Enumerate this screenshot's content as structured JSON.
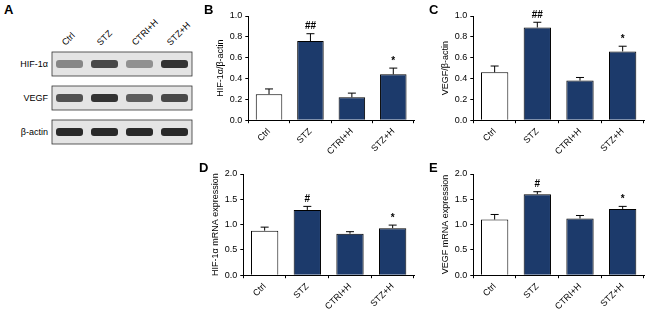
{
  "blot": {
    "panel": "A",
    "lanes": [
      "Ctrl",
      "STZ",
      "CTRI+H",
      "STZ+H"
    ],
    "rows": [
      "HIF-1α",
      "VEGF",
      "β-actin"
    ]
  },
  "chart_data": [
    {
      "type": "bar",
      "panel": "B",
      "y_label": "HIF-1α/β-actin",
      "categories": [
        "Ctrl",
        "STZ",
        "CTRI+H",
        "STZ+H"
      ],
      "values": [
        0.25,
        0.76,
        0.22,
        0.44
      ],
      "errors": [
        0.05,
        0.07,
        0.04,
        0.06
      ],
      "colors": [
        "#ffffff",
        "#1c3a6b",
        "#1c3a6b",
        "#1c3a6b"
      ],
      "annotations": [
        {
          "category": "STZ",
          "text": "##"
        },
        {
          "category": "STZ+H",
          "text": "*"
        }
      ],
      "ylim": [
        0,
        1.0
      ],
      "yticks": [
        {
          "value": 0,
          "label": "0.0"
        },
        {
          "value": 0.2,
          "label": "0.2"
        },
        {
          "value": 0.4,
          "label": "0.4"
        },
        {
          "value": 0.6,
          "label": "0.6"
        },
        {
          "value": 0.8,
          "label": "0.8"
        },
        {
          "value": 1.0,
          "label": "1.0"
        }
      ],
      "grid": false
    },
    {
      "type": "bar",
      "panel": "C",
      "y_label": "VEGF/β-actin",
      "categories": [
        "Ctrl",
        "STZ",
        "CTRI+H",
        "STZ+H"
      ],
      "values": [
        0.46,
        0.89,
        0.38,
        0.66
      ],
      "errors": [
        0.06,
        0.05,
        0.03,
        0.05
      ],
      "colors": [
        "#ffffff",
        "#1c3a6b",
        "#1c3a6b",
        "#1c3a6b"
      ],
      "annotations": [
        {
          "category": "STZ",
          "text": "##"
        },
        {
          "category": "STZ+H",
          "text": "*"
        }
      ],
      "ylim": [
        0,
        1.0
      ],
      "yticks": [
        {
          "value": 0,
          "label": "0.0"
        },
        {
          "value": 0.2,
          "label": "0.2"
        },
        {
          "value": 0.4,
          "label": "0.4"
        },
        {
          "value": 0.6,
          "label": "0.6"
        },
        {
          "value": 0.8,
          "label": "0.8"
        },
        {
          "value": 1.0,
          "label": "1.0"
        }
      ],
      "grid": false
    },
    {
      "type": "bar",
      "panel": "D",
      "y_label": "HIF-1α mRNA expression",
      "categories": [
        "Ctrl",
        "STZ",
        "CTRI+H",
        "STZ+H"
      ],
      "values": [
        0.88,
        1.29,
        0.82,
        0.93
      ],
      "errors": [
        0.07,
        0.07,
        0.04,
        0.06
      ],
      "colors": [
        "#ffffff",
        "#1c3a6b",
        "#1c3a6b",
        "#1c3a6b"
      ],
      "annotations": [
        {
          "category": "STZ",
          "text": "#"
        },
        {
          "category": "STZ+H",
          "text": "*"
        }
      ],
      "ylim": [
        0,
        2.0
      ],
      "yticks": [
        {
          "value": 0,
          "label": "0.0"
        },
        {
          "value": 0.5,
          "label": "0.5"
        },
        {
          "value": 1.0,
          "label": "1.0"
        },
        {
          "value": 1.5,
          "label": "1.5"
        },
        {
          "value": 2.0,
          "label": "2.0"
        }
      ],
      "grid": false
    },
    {
      "type": "bar",
      "panel": "E",
      "y_label": "VEGF mRNA expression",
      "categories": [
        "Ctrl",
        "STZ",
        "CTRI+H",
        "STZ+H"
      ],
      "values": [
        1.1,
        1.6,
        1.12,
        1.31
      ],
      "errors": [
        0.1,
        0.05,
        0.06,
        0.05
      ],
      "colors": [
        "#ffffff",
        "#1c3a6b",
        "#1c3a6b",
        "#1c3a6b"
      ],
      "annotations": [
        {
          "category": "STZ",
          "text": "#"
        },
        {
          "category": "STZ+H",
          "text": "*"
        }
      ],
      "ylim": [
        0,
        2.0
      ],
      "yticks": [
        {
          "value": 0,
          "label": "0.0"
        },
        {
          "value": 0.5,
          "label": "0.5"
        },
        {
          "value": 1.0,
          "label": "1.0"
        },
        {
          "value": 1.5,
          "label": "1.5"
        },
        {
          "value": 2.0,
          "label": "2.0"
        }
      ],
      "grid": false
    }
  ]
}
